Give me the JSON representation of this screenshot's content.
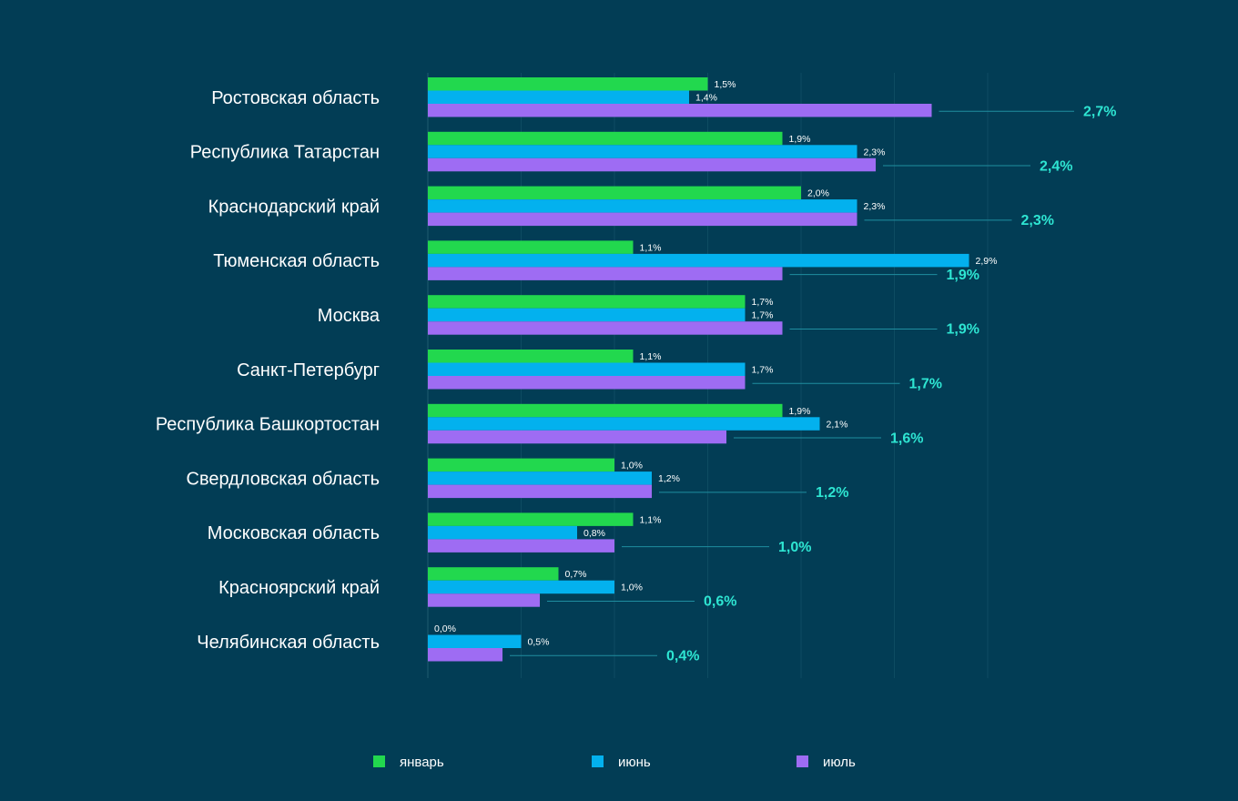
{
  "chart_data": {
    "type": "bar",
    "orientation": "horizontal",
    "categories": [
      "Ростовская область",
      "Республика Татарстан",
      "Краснодарский край",
      "Тюменская область",
      "Москва",
      "Санкт-Петербург",
      "Республика Башкортостан",
      "Свердловская область",
      "Московская область",
      "Красноярский край",
      "Челябинская область"
    ],
    "series": [
      {
        "name": "январь",
        "color": "#22d84e",
        "values": [
          1.5,
          1.9,
          2.0,
          1.1,
          1.7,
          1.1,
          1.9,
          1.0,
          1.1,
          0.7,
          0.0
        ],
        "labels": [
          "1,5%",
          "1,9%",
          "2,0%",
          "1,1%",
          "1,7%",
          "1,1%",
          "1,9%",
          "1,0%",
          "1,1%",
          "0,7%",
          "0,0%"
        ]
      },
      {
        "name": "июнь",
        "color": "#03b1ee",
        "values": [
          1.4,
          2.3,
          2.3,
          2.9,
          1.7,
          1.7,
          2.1,
          1.2,
          0.8,
          1.0,
          0.5
        ],
        "labels": [
          "1,4%",
          "2,3%",
          "2,3%",
          "2,9%",
          "1,7%",
          "1,7%",
          "2,1%",
          "1,2%",
          "0,8%",
          "1,0%",
          "0,5%"
        ]
      },
      {
        "name": "июль",
        "color": "#9e6cf3",
        "values": [
          2.7,
          2.4,
          2.3,
          1.9,
          1.9,
          1.7,
          1.6,
          1.2,
          1.0,
          0.6,
          0.4
        ],
        "labels": [
          "2,7%",
          "2,4%",
          "2,3%",
          "1,9%",
          "1,9%",
          "1,7%",
          "1,6%",
          "1,2%",
          "1,0%",
          "0,6%",
          "0,4%"
        ]
      }
    ],
    "xlim": [
      0,
      3.0
    ],
    "grid": true,
    "legend_position": "bottom",
    "accent_label_color": "#2ee5d2",
    "background": "#023d55"
  }
}
